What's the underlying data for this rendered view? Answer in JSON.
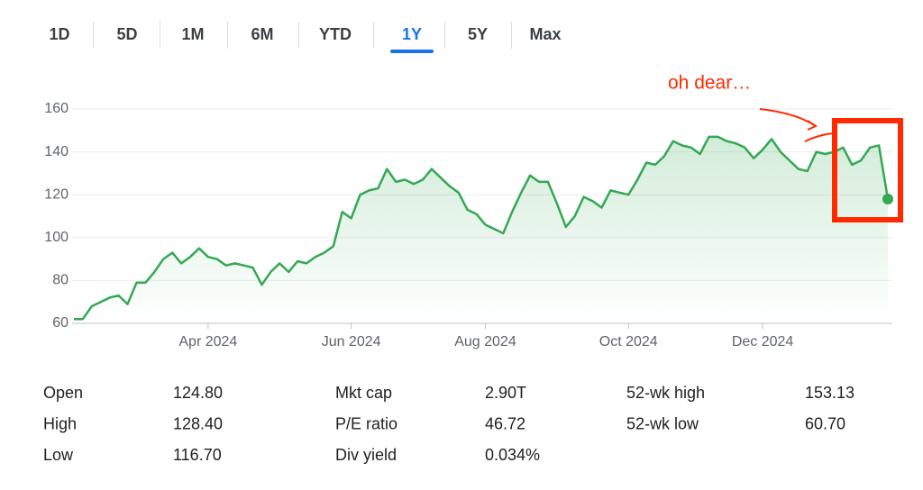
{
  "tabs": [
    "1D",
    "5D",
    "1M",
    "6M",
    "YTD",
    "1Y",
    "5Y",
    "Max"
  ],
  "selected_tab": "1Y",
  "chart_data": {
    "type": "line",
    "annotation": "oh dear…",
    "color": "#34a853",
    "grid": true,
    "ylim": [
      60,
      160
    ],
    "yticks": [
      60,
      80,
      100,
      120,
      140,
      160
    ],
    "categories": [
      null,
      null,
      null,
      null,
      null,
      null,
      null,
      null,
      null,
      null,
      null,
      null,
      null,
      null,
      null,
      "Apr 2024",
      null,
      null,
      null,
      null,
      null,
      null,
      null,
      null,
      null,
      null,
      null,
      null,
      null,
      null,
      null,
      "Jun 2024",
      null,
      null,
      null,
      null,
      null,
      null,
      null,
      null,
      null,
      null,
      null,
      null,
      null,
      null,
      "Aug 2024",
      null,
      null,
      null,
      null,
      null,
      null,
      null,
      null,
      null,
      null,
      null,
      null,
      null,
      null,
      null,
      "Oct 2024",
      null,
      null,
      null,
      null,
      null,
      null,
      null,
      null,
      null,
      null,
      null,
      null,
      null,
      null,
      "Dec 2024",
      null,
      null,
      null,
      null,
      null,
      null,
      null,
      null,
      null,
      null,
      null,
      null,
      null,
      null
    ],
    "values": [
      62,
      62,
      68,
      70,
      72,
      73,
      69,
      79,
      79,
      84,
      90,
      93,
      88,
      91,
      95,
      91,
      90,
      87,
      88,
      87,
      86,
      78,
      84,
      88,
      84,
      89,
      88,
      91,
      93,
      96,
      112,
      109,
      120,
      122,
      123,
      132,
      126,
      127,
      125,
      127,
      132,
      128,
      124,
      121,
      113,
      111,
      106,
      104,
      102,
      112,
      121,
      129,
      126,
      126,
      116,
      105,
      110,
      119,
      117,
      114,
      122,
      121,
      120,
      127,
      135,
      134,
      138,
      145,
      143,
      142,
      139,
      147,
      147,
      145,
      144,
      142,
      137,
      141,
      146,
      140,
      136,
      132,
      131,
      140,
      139,
      140,
      142,
      134,
      136,
      142,
      143,
      118
    ]
  },
  "stats": [
    [
      {
        "label": "Open",
        "value": "124.80"
      },
      {
        "label": "Mkt cap",
        "value": "2.90T"
      },
      {
        "label": "52-wk high",
        "value": "153.13"
      }
    ],
    [
      {
        "label": "High",
        "value": "128.40"
      },
      {
        "label": "P/E ratio",
        "value": "46.72"
      },
      {
        "label": "52-wk low",
        "value": "60.70"
      }
    ],
    [
      {
        "label": "Low",
        "value": "116.70"
      },
      {
        "label": "Div yield",
        "value": "0.034%"
      }
    ]
  ]
}
